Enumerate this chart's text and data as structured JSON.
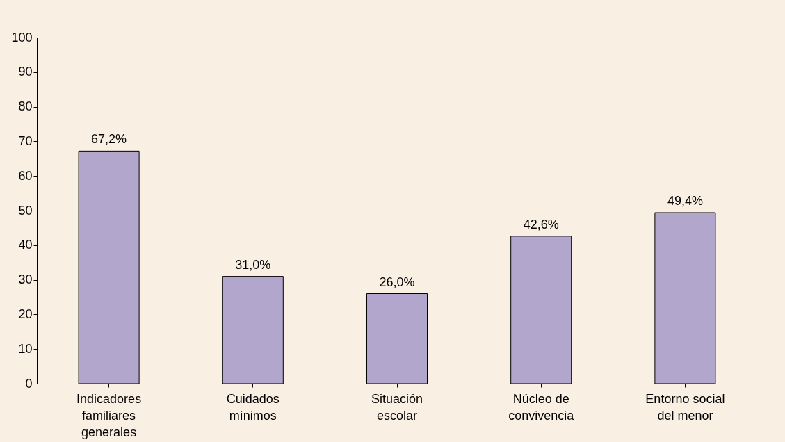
{
  "chart_data": {
    "type": "bar",
    "categories": [
      "Indicadores familiares generales",
      "Cuidados mínimos",
      "Situación escolar",
      "Núcleo de convivencia",
      "Entorno social del menor"
    ],
    "values": [
      67.2,
      31.0,
      26.0,
      42.6,
      49.4
    ],
    "value_labels": [
      "67,2%",
      "31,0%",
      "26,0%",
      "42,6%",
      "49,4%"
    ],
    "color": "#b3a6cc",
    "ylim": [
      0,
      100
    ],
    "yticks": [
      0,
      10,
      20,
      30,
      40,
      50,
      60,
      70,
      80,
      90,
      100
    ],
    "grid": false
  }
}
